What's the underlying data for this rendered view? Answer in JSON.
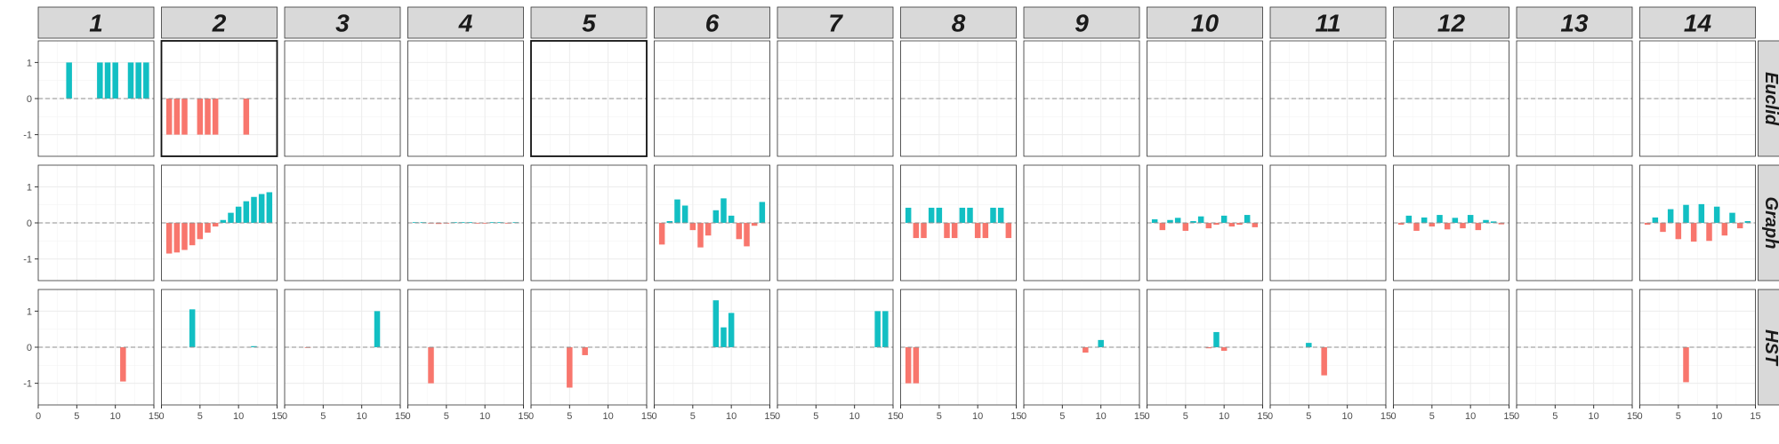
{
  "chart_data": {
    "type": "bar",
    "layout": "facet grid (rows x columns)",
    "columns": [
      "1",
      "2",
      "3",
      "4",
      "5",
      "6",
      "7",
      "8",
      "9",
      "10",
      "11",
      "12",
      "13",
      "14"
    ],
    "rows": [
      "Euclid",
      "Graph",
      "HST"
    ],
    "x_ticks": [
      "0",
      "5",
      "10",
      "15"
    ],
    "y_ticks": [
      "-1",
      "0",
      "1"
    ],
    "xlim": [
      0,
      15
    ],
    "ylim": [
      -1.6,
      1.6
    ],
    "grid": true,
    "zero_line": "dashed",
    "positive_color": "#12bfc3",
    "negative_color": "#f8766d",
    "highlighted_panels": [
      {
        "row": "Euclid",
        "column": "2"
      },
      {
        "row": "Euclid",
        "column": "5"
      }
    ],
    "panels": [
      {
        "row": "Euclid",
        "column": "1",
        "x": [
          4,
          8,
          9,
          10,
          12,
          13,
          14
        ],
        "y": [
          1,
          1,
          1,
          1,
          1,
          1,
          1
        ]
      },
      {
        "row": "Euclid",
        "column": "2",
        "x": [
          1,
          2,
          3,
          5,
          6,
          7,
          11
        ],
        "y": [
          -1,
          -1,
          -1,
          -1,
          -1,
          -1,
          -1
        ]
      },
      {
        "row": "Euclid",
        "column": "3",
        "x": [],
        "y": []
      },
      {
        "row": "Euclid",
        "column": "4",
        "x": [],
        "y": []
      },
      {
        "row": "Euclid",
        "column": "5",
        "x": [],
        "y": []
      },
      {
        "row": "Euclid",
        "column": "6",
        "x": [],
        "y": []
      },
      {
        "row": "Euclid",
        "column": "7",
        "x": [],
        "y": []
      },
      {
        "row": "Euclid",
        "column": "8",
        "x": [],
        "y": []
      },
      {
        "row": "Euclid",
        "column": "9",
        "x": [],
        "y": []
      },
      {
        "row": "Euclid",
        "column": "10",
        "x": [],
        "y": []
      },
      {
        "row": "Euclid",
        "column": "11",
        "x": [],
        "y": []
      },
      {
        "row": "Euclid",
        "column": "12",
        "x": [],
        "y": []
      },
      {
        "row": "Euclid",
        "column": "13",
        "x": [],
        "y": []
      },
      {
        "row": "Euclid",
        "column": "14",
        "x": [],
        "y": []
      },
      {
        "row": "Graph",
        "column": "1",
        "x": [],
        "y": []
      },
      {
        "row": "Graph",
        "column": "2",
        "x": [
          1,
          2,
          3,
          4,
          5,
          6,
          7,
          8,
          9,
          10,
          11,
          12,
          13,
          14
        ],
        "y": [
          -0.85,
          -0.82,
          -0.75,
          -0.62,
          -0.45,
          -0.27,
          -0.1,
          0.08,
          0.28,
          0.45,
          0.6,
          0.72,
          0.8,
          0.85
        ]
      },
      {
        "row": "Graph",
        "column": "3",
        "x": [],
        "y": []
      },
      {
        "row": "Graph",
        "column": "4",
        "x": [
          1,
          2,
          3,
          4,
          5,
          6,
          7,
          8,
          9,
          10,
          11,
          12,
          13,
          14
        ],
        "y": [
          0.02,
          0.02,
          -0.02,
          -0.03,
          -0.02,
          0.02,
          0.02,
          0.02,
          -0.02,
          -0.02,
          0.02,
          0.02,
          -0.02,
          0.02
        ]
      },
      {
        "row": "Graph",
        "column": "5",
        "x": [],
        "y": []
      },
      {
        "row": "Graph",
        "column": "6",
        "x": [
          1,
          2,
          3,
          4,
          5,
          6,
          7,
          8,
          9,
          10,
          11,
          12,
          13,
          14
        ],
        "y": [
          -0.6,
          0.05,
          0.65,
          0.48,
          -0.2,
          -0.68,
          -0.35,
          0.35,
          0.68,
          0.2,
          -0.45,
          -0.65,
          -0.08,
          0.58
        ]
      },
      {
        "row": "Graph",
        "column": "7",
        "x": [],
        "y": []
      },
      {
        "row": "Graph",
        "column": "8",
        "x": [
          1,
          2,
          3,
          4,
          5,
          6,
          7,
          8,
          9,
          10,
          11,
          12,
          13,
          14
        ],
        "y": [
          0.42,
          -0.42,
          -0.42,
          0.42,
          0.42,
          -0.42,
          -0.42,
          0.42,
          0.42,
          -0.42,
          -0.42,
          0.42,
          0.42,
          -0.42
        ]
      },
      {
        "row": "Graph",
        "column": "9",
        "x": [],
        "y": []
      },
      {
        "row": "Graph",
        "column": "10",
        "x": [
          1,
          2,
          3,
          4,
          5,
          6,
          7,
          8,
          9,
          10,
          11,
          12,
          13,
          14
        ],
        "y": [
          0.1,
          -0.2,
          0.08,
          0.14,
          -0.22,
          0.05,
          0.18,
          -0.15,
          -0.05,
          0.2,
          -0.1,
          -0.05,
          0.22,
          -0.12
        ]
      },
      {
        "row": "Graph",
        "column": "11",
        "x": [],
        "y": []
      },
      {
        "row": "Graph",
        "column": "12",
        "x": [
          1,
          2,
          3,
          4,
          5,
          6,
          7,
          8,
          9,
          10,
          11,
          12,
          13,
          14
        ],
        "y": [
          -0.05,
          0.2,
          -0.22,
          0.15,
          -0.1,
          0.22,
          -0.18,
          0.14,
          -0.15,
          0.22,
          -0.2,
          0.08,
          0.04,
          -0.04
        ]
      },
      {
        "row": "Graph",
        "column": "13",
        "x": [],
        "y": []
      },
      {
        "row": "Graph",
        "column": "14",
        "x": [
          1,
          2,
          3,
          4,
          5,
          6,
          7,
          8,
          9,
          10,
          11,
          12,
          13,
          14
        ],
        "y": [
          -0.05,
          0.15,
          -0.25,
          0.38,
          -0.45,
          0.5,
          -0.52,
          0.52,
          -0.5,
          0.45,
          -0.35,
          0.28,
          -0.15,
          0.05
        ]
      },
      {
        "row": "HST",
        "column": "1",
        "x": [
          11
        ],
        "y": [
          -0.95
        ]
      },
      {
        "row": "HST",
        "column": "2",
        "x": [
          4,
          12
        ],
        "y": [
          1.05,
          0.03
        ]
      },
      {
        "row": "HST",
        "column": "3",
        "x": [
          3,
          12
        ],
        "y": [
          -0.02,
          1.0
        ]
      },
      {
        "row": "HST",
        "column": "4",
        "x": [
          3
        ],
        "y": [
          -1.0
        ]
      },
      {
        "row": "HST",
        "column": "5",
        "x": [
          5,
          7
        ],
        "y": [
          -1.12,
          -0.22
        ]
      },
      {
        "row": "HST",
        "column": "6",
        "x": [
          8,
          9,
          10
        ],
        "y": [
          1.3,
          0.55,
          0.95
        ]
      },
      {
        "row": "HST",
        "column": "7",
        "x": [
          13,
          14
        ],
        "y": [
          1.0,
          1.0
        ]
      },
      {
        "row": "HST",
        "column": "8",
        "x": [
          1,
          2
        ],
        "y": [
          -1.0,
          -1.0
        ]
      },
      {
        "row": "HST",
        "column": "9",
        "x": [
          8,
          10
        ],
        "y": [
          -0.15,
          0.2
        ]
      },
      {
        "row": "HST",
        "column": "10",
        "x": [
          8,
          9,
          10
        ],
        "y": [
          -0.03,
          0.42,
          -0.1
        ]
      },
      {
        "row": "HST",
        "column": "11",
        "x": [
          5,
          7
        ],
        "y": [
          0.12,
          -0.78
        ]
      },
      {
        "row": "HST",
        "column": "12",
        "x": [],
        "y": []
      },
      {
        "row": "HST",
        "column": "13",
        "x": [],
        "y": []
      },
      {
        "row": "HST",
        "column": "14",
        "x": [
          6
        ],
        "y": [
          -0.97
        ]
      }
    ]
  }
}
